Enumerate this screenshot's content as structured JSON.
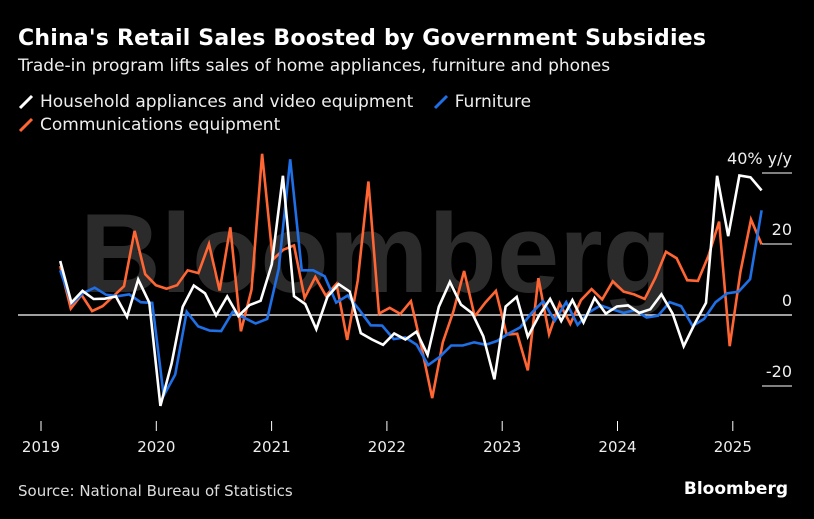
{
  "chart_data": {
    "type": "line",
    "title": "China's Retail Sales Boosted by Government Subsidies",
    "subtitle": "Trade-in program lifts sales of home appliances, furniture and phones",
    "ylabel_unit": "40% y/y",
    "ylim": [
      -33,
      45
    ],
    "yticks": [
      {
        "value": 40,
        "label": "40% y/y"
      },
      {
        "value": 20,
        "label": "20"
      },
      {
        "value": 0,
        "label": "0"
      },
      {
        "value": -20,
        "label": "-20"
      }
    ],
    "xticks": [
      "2019",
      "2020",
      "2021",
      "2022",
      "2023",
      "2024",
      "2025"
    ],
    "x_start": "2019-03",
    "x_end": "2025-04",
    "series": [
      {
        "name": "Household appliances and video equipment",
        "color": "#ffffff",
        "values": [
          15.2,
          3.5,
          6.8,
          4.5,
          4.6,
          5.2,
          -0.5,
          10.0,
          3.5,
          -25.6,
          -13.7,
          2.3,
          8.3,
          6.1,
          -0.1,
          5.2,
          -0.3,
          2.8,
          4.0,
          14.3,
          39.2,
          5.3,
          3.1,
          -4.0,
          5.1,
          8.7,
          6.6,
          -5.1,
          -6.9,
          -8.4,
          -5.2,
          -6.9,
          -4.7,
          -11.2,
          2.3,
          9.3,
          2.9,
          0.5,
          -6.0,
          -18.1,
          2.4,
          5.1,
          -6.1,
          -0.2,
          4.5,
          -1.7,
          4.2,
          -2.1,
          4.8,
          0.4,
          2.4,
          2.7,
          0.6,
          1.6,
          5.8,
          0.4,
          -8.8,
          -2.4,
          3.4,
          39.2,
          22.2,
          39.3,
          38.8,
          35.1
        ]
      },
      {
        "name": "Furniture",
        "color": "#1f6fe6",
        "values": [
          12.6,
          3.2,
          6.2,
          7.7,
          5.7,
          5.3,
          5.8,
          3.6,
          3.4,
          -22.7,
          -16.8,
          0.9,
          -3.2,
          -4.4,
          -4.5,
          0.9,
          -0.8,
          -2.4,
          -1.1,
          13.0,
          43.9,
          12.6,
          12.6,
          10.9,
          3.5,
          5.5,
          1.5,
          -2.9,
          -3.0,
          -6.8,
          -6.3,
          -8.4,
          -14.1,
          -11.8,
          -8.6,
          -8.6,
          -7.7,
          -8.4,
          -7.3,
          -5.2,
          -3.5,
          0.6,
          3.9,
          -1.6,
          3.6,
          -2.8,
          0.8,
          2.7,
          1.6,
          0.6,
          1.4,
          -0.7,
          -0.2,
          3.6,
          2.5,
          -3.1,
          -1.1,
          3.6,
          6.1,
          6.6,
          10.1,
          29.5
        ]
      },
      {
        "name": "Communications equipment",
        "color": "#ff6633",
        "values": [
          13.8,
          1.8,
          5.7,
          1.1,
          2.5,
          5.3,
          8.1,
          23.7,
          11.5,
          8.4,
          7.4,
          8.4,
          12.6,
          11.8,
          20.0,
          6.9,
          24.7,
          -4.6,
          7.1,
          45.4,
          15.6,
          18.4,
          19.6,
          4.8,
          10.7,
          5.4,
          8.8,
          -7.0,
          9.8,
          37.6,
          0.4,
          2.0,
          0.3,
          3.9,
          -9.0,
          -23.4,
          -7.7,
          1.0,
          12.4,
          -0.4,
          3.5,
          6.8,
          -5.5,
          -5.3,
          -15.6,
          10.4,
          -5.4,
          3.3,
          -2.5,
          4.2,
          7.3,
          4.4,
          9.5,
          6.6,
          5.8,
          4.5,
          10.5,
          17.8,
          16.0,
          9.8,
          9.6,
          16.7,
          26.3,
          -8.8,
          12.1,
          26.9,
          19.9
        ]
      }
    ],
    "annotations": {
      "watermark": "Bloomberg"
    }
  },
  "legend": {
    "items": [
      {
        "label": "Household appliances and video equipment",
        "color": "#ffffff"
      },
      {
        "label": "Furniture",
        "color": "#1f6fe6"
      },
      {
        "label": "Communications equipment",
        "color": "#ff6633"
      }
    ]
  },
  "footer": {
    "source": "Source: National Bureau of Statistics",
    "brand": "Bloomberg"
  }
}
